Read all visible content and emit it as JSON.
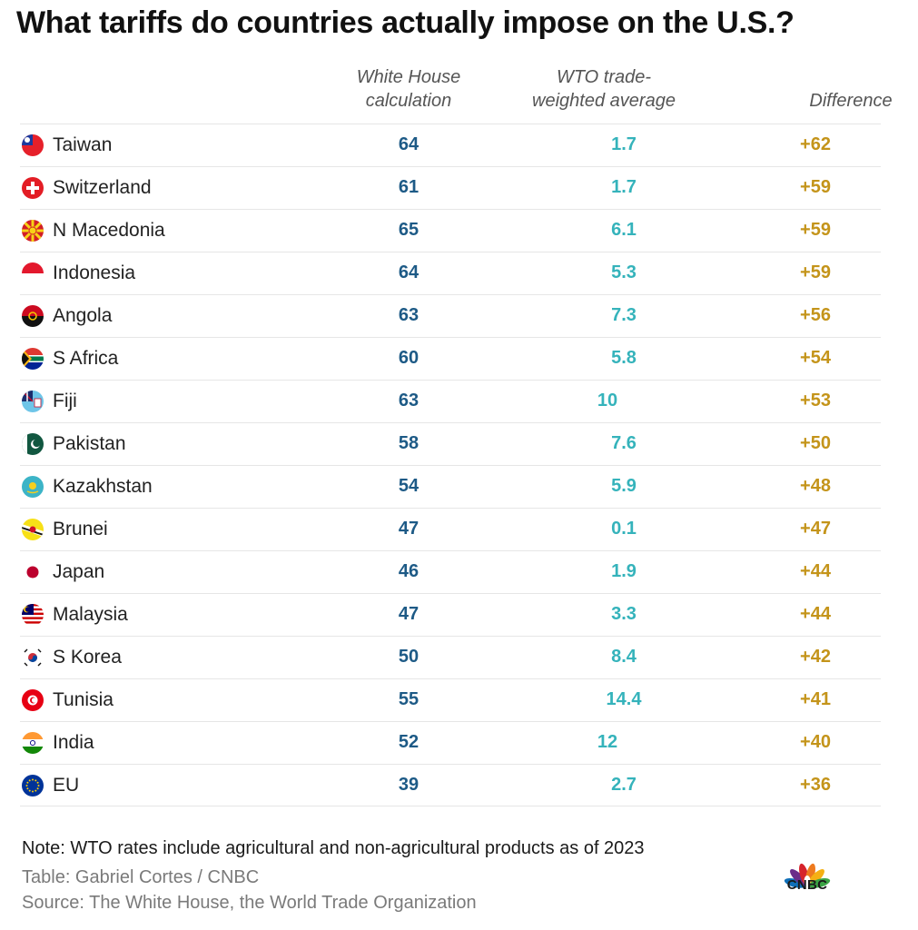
{
  "title": "What tariffs do countries actually impose on the U.S.?",
  "headers": {
    "white_house_line1": "White House",
    "white_house_line2": "calculation",
    "wto_line1": "WTO trade-",
    "wto_line2": "weighted average",
    "difference": "Difference"
  },
  "colors": {
    "white_house": "#1d5a86",
    "wto": "#35b3bb",
    "difference": "#c4941a"
  },
  "chart_data": {
    "type": "table",
    "columns": [
      "",
      "White House calculation",
      "WTO trade-weighted average",
      "Difference"
    ],
    "rows": [
      {
        "country": "Taiwan",
        "flag": "taiwan-flag-icon",
        "white_house": "64",
        "wto": "1.7",
        "difference": "+62"
      },
      {
        "country": "Switzerland",
        "flag": "switzerland-flag-icon",
        "white_house": "61",
        "wto": "1.7",
        "difference": "+59"
      },
      {
        "country": "N Macedonia",
        "flag": "north-macedonia-flag-icon",
        "white_house": "65",
        "wto": "6.1",
        "difference": "+59"
      },
      {
        "country": "Indonesia",
        "flag": "indonesia-flag-icon",
        "white_house": "64",
        "wto": "5.3",
        "difference": "+59"
      },
      {
        "country": "Angola",
        "flag": "angola-flag-icon",
        "white_house": "63",
        "wto": "7.3",
        "difference": "+56"
      },
      {
        "country": "S Africa",
        "flag": "south-africa-flag-icon",
        "white_house": "60",
        "wto": "5.8",
        "difference": "+54"
      },
      {
        "country": "Fiji",
        "flag": "fiji-flag-icon",
        "white_house": "63",
        "wto": "10",
        "difference": "+53"
      },
      {
        "country": "Pakistan",
        "flag": "pakistan-flag-icon",
        "white_house": "58",
        "wto": "7.6",
        "difference": "+50"
      },
      {
        "country": "Kazakhstan",
        "flag": "kazakhstan-flag-icon",
        "white_house": "54",
        "wto": "5.9",
        "difference": "+48"
      },
      {
        "country": "Brunei",
        "flag": "brunei-flag-icon",
        "white_house": "47",
        "wto": "0.1",
        "difference": "+47"
      },
      {
        "country": "Japan",
        "flag": "japan-flag-icon",
        "white_house": "46",
        "wto": "1.9",
        "difference": "+44"
      },
      {
        "country": "Malaysia",
        "flag": "malaysia-flag-icon",
        "white_house": "47",
        "wto": "3.3",
        "difference": "+44"
      },
      {
        "country": "S Korea",
        "flag": "south-korea-flag-icon",
        "white_house": "50",
        "wto": "8.4",
        "difference": "+42"
      },
      {
        "country": "Tunisia",
        "flag": "tunisia-flag-icon",
        "white_house": "55",
        "wto": "14.4",
        "difference": "+41"
      },
      {
        "country": "India",
        "flag": "india-flag-icon",
        "white_house": "52",
        "wto": "12",
        "difference": "+40"
      },
      {
        "country": "EU",
        "flag": "eu-flag-icon",
        "white_house": "39",
        "wto": "2.7",
        "difference": "+36"
      }
    ]
  },
  "footer": {
    "note": "Note: WTO rates include agricultural and non-agricultural products as of 2023",
    "table_credit": "Table: Gabriel Cortes / CNBC",
    "source": "Source: The White House, the World Trade Organization",
    "logo_text": "CNBC",
    "logo_icon": "cnbc-peacock-logo-icon"
  }
}
